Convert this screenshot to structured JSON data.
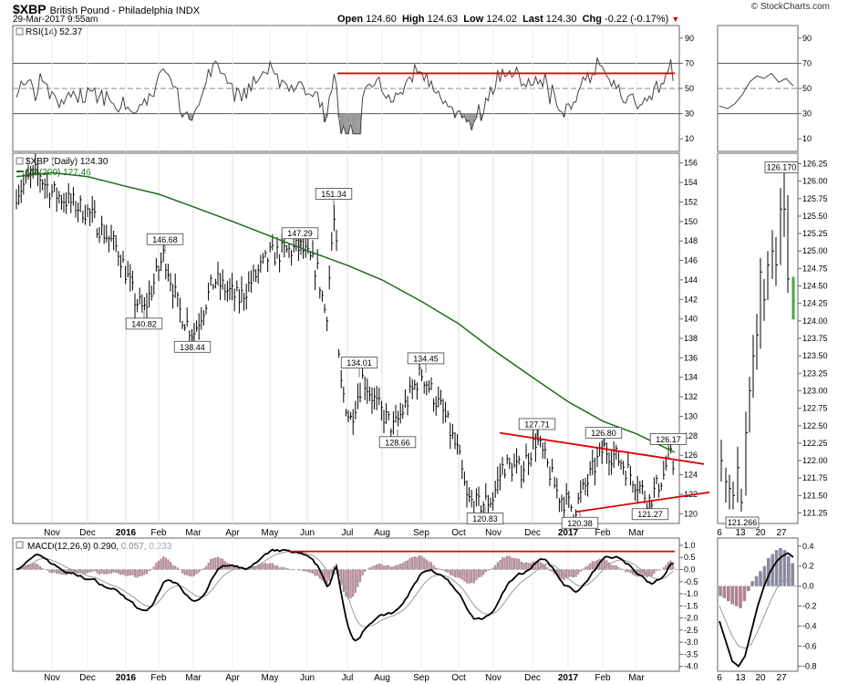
{
  "header": {
    "symbol": "$XBP",
    "name": "British Pound - Philadelphia INDX",
    "date": "29-Mar-2017 9:55am",
    "logo": "© StockCharts.com",
    "open_label": "Open",
    "open": "124.60",
    "high_label": "High",
    "high": "124.63",
    "low_label": "Low",
    "low": "124.02",
    "last_label": "Last",
    "last": "124.30",
    "chg_label": "Chg",
    "chg": "-0.22 (-0.17%)",
    "chg_arrow": "▼"
  },
  "rsi_panel": {
    "label": "RSI(14) 52.37",
    "ticks": [
      "90",
      "70",
      "50",
      "30",
      "10"
    ]
  },
  "price_panel": {
    "label": "$XBP (Daily) 124.30",
    "ma_label": "MA(200) 127.46",
    "ticks": [
      "156",
      "154",
      "152",
      "150",
      "148",
      "146",
      "144",
      "142",
      "140",
      "138",
      "136",
      "134",
      "132",
      "130",
      "128",
      "126",
      "124",
      "122",
      "120"
    ],
    "annotations": [
      "151.34",
      "146.68",
      "147.29",
      "140.82",
      "138.44",
      "134.01",
      "134.45",
      "128.66",
      "127.71",
      "126.80",
      "126.17",
      "120.83",
      "120.38",
      "121.27"
    ]
  },
  "macd_panel": {
    "label_main": "MACD(12,26,9)",
    "label_macd": "0.290,",
    "label_signal": "0.057,",
    "label_hist": "0.233",
    "ticks": [
      "1.0",
      "0.5",
      "0.0",
      "-0.5",
      "-1.0",
      "-1.5",
      "-2.0",
      "-2.5",
      "-3.0",
      "-3.5",
      "-4.0"
    ]
  },
  "x_axis": {
    "labels": [
      "Nov",
      "Dec",
      "2016",
      "Feb",
      "Mar",
      "Apr",
      "May",
      "Jun",
      "Jul",
      "Aug",
      "Sep",
      "Oct",
      "Nov",
      "Dec",
      "2017",
      "Feb",
      "Mar"
    ]
  },
  "zoom_panel": {
    "rsi_ticks": [
      "90",
      "70",
      "50",
      "30",
      "10"
    ],
    "price_ticks": [
      "126.25",
      "126.00",
      "125.75",
      "125.50",
      "125.25",
      "125.00",
      "124.75",
      "124.50",
      "124.25",
      "124.00",
      "123.75",
      "123.50",
      "123.25",
      "123.00",
      "122.75",
      "122.50",
      "122.25",
      "122.00",
      "121.75",
      "121.50",
      "121.25"
    ],
    "price_annotations": [
      "126.170",
      "121.266"
    ],
    "macd_ticks": [
      "0.4",
      "0.2",
      "0.0",
      "-0.2",
      "-0.4",
      "-0.6",
      "-0.8"
    ],
    "x_labels": [
      "6",
      "13",
      "20",
      "27"
    ]
  },
  "chart_data": {
    "type": "line",
    "title": "$XBP British Pound - Philadelphia INDX",
    "colors": {
      "price": "#000000",
      "ma200": "#1a6e1a",
      "trend": "#e00000",
      "rsi": "#444444",
      "macd_hist": "#a07080",
      "signal": "#999999"
    },
    "x": [
      "Nov",
      "Dec",
      "2016",
      "Feb",
      "Mar",
      "Apr",
      "May",
      "Jun",
      "Jul",
      "Aug",
      "Sep",
      "Oct",
      "Nov",
      "Dec",
      "2017",
      "Feb",
      "Mar"
    ],
    "series": [
      {
        "name": "$XBP (Daily)",
        "values": [
          153.0,
          152.0,
          149.0,
          144.5,
          141.0,
          142.0,
          145.5,
          145.0,
          133.0,
          131.0,
          134.0,
          125.0,
          123.0,
          127.0,
          122.0,
          126.0,
          123.0
        ]
      },
      {
        "name": "MA(200)",
        "values": [
          155.0,
          155.0,
          154.0,
          153.0,
          151.5,
          150.0,
          148.5,
          147.0,
          145.5,
          144.0,
          142.0,
          140.0,
          137.5,
          134.5,
          131.5,
          129.5,
          127.5
        ]
      }
    ],
    "ylim": [
      119,
      157
    ],
    "pivots": [
      {
        "label": "151.34",
        "x": "Jun",
        "value": 151.34
      },
      {
        "label": "146.68",
        "x": "Feb",
        "value": 146.68
      },
      {
        "label": "147.29",
        "x": "May",
        "value": 147.29
      },
      {
        "label": "140.82",
        "x": "Feb",
        "value": 140.82
      },
      {
        "label": "138.44",
        "x": "Mar",
        "value": 138.44
      },
      {
        "label": "134.01",
        "x": "Jul",
        "value": 134.01
      },
      {
        "label": "134.45",
        "x": "Sep",
        "value": 134.45
      },
      {
        "label": "128.66",
        "x": "Aug",
        "value": 128.66
      },
      {
        "label": "127.71",
        "x": "Dec",
        "value": 127.71
      },
      {
        "label": "126.80",
        "x": "Feb",
        "value": 126.8
      },
      {
        "label": "126.17",
        "x": "Mar",
        "value": 126.17
      },
      {
        "label": "120.83",
        "x": "Oct",
        "value": 120.83
      },
      {
        "label": "120.38",
        "x": "2017",
        "value": 120.38
      },
      {
        "label": "121.27",
        "x": "Mar",
        "value": 121.27
      }
    ],
    "rsi": {
      "name": "RSI(14)",
      "last": 52.37,
      "ylim": [
        0,
        100
      ],
      "levels": [
        70,
        30
      ]
    },
    "macd": {
      "macd": 0.29,
      "signal": 0.057,
      "histogram": 0.233,
      "ylim": [
        -4.2,
        1.3
      ]
    }
  }
}
